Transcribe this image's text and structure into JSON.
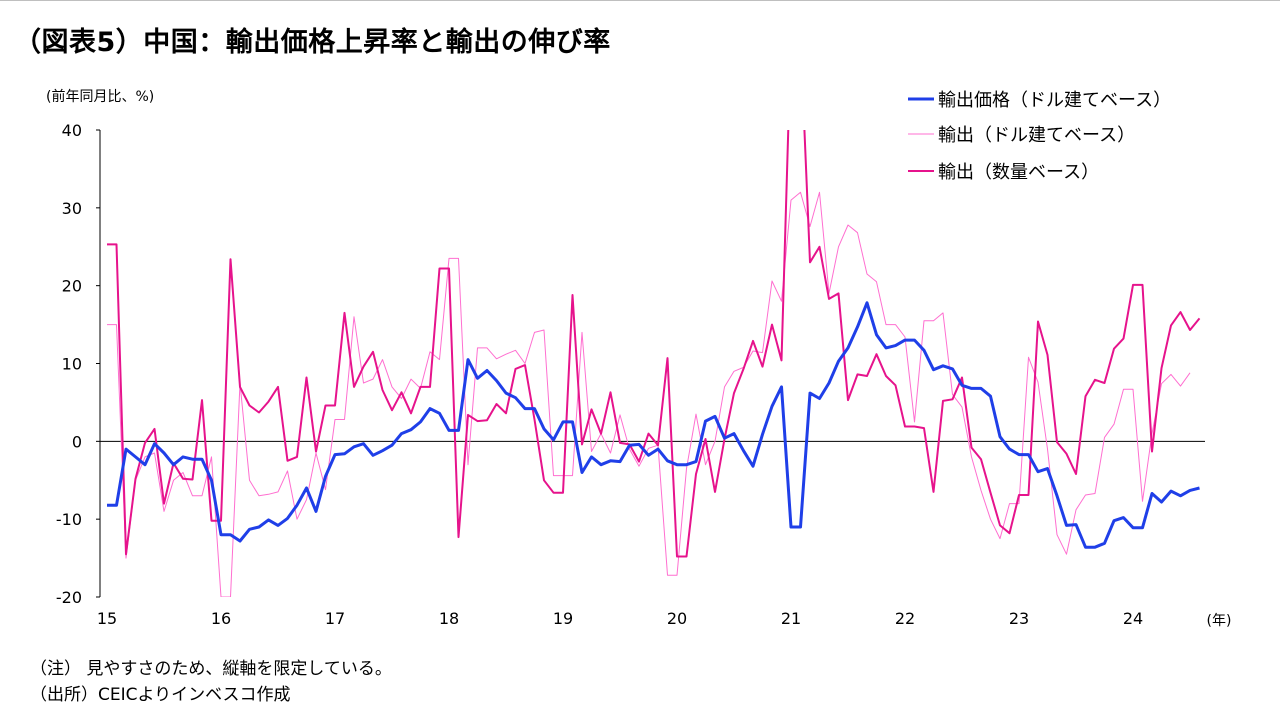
{
  "title": "（図表5）中国：輸出価格上昇率と輸出の伸び率",
  "notes": {
    "note1": "（注） 見やすさのため、縦軸を限定している。",
    "note2": "（出所）CEICよりインベスコ作成"
  },
  "chart_data": {
    "type": "line",
    "ylabel": "(前年同月比、%)",
    "xunit": "(年)",
    "ylim": [
      -20,
      40
    ],
    "yticks": [
      -20,
      -10,
      0,
      10,
      20,
      30,
      40
    ],
    "x_tick_labels": [
      "15",
      "16",
      "17",
      "18",
      "19",
      "20",
      "21",
      "22",
      "23",
      "24"
    ],
    "x_start": "2015-01",
    "legend_position": "top-right",
    "series": [
      {
        "name": "輸出価格（ドル建てベース）",
        "color": "#1f3fe8",
        "width": 3,
        "values": [
          -8.2,
          -8.2,
          -1,
          -2,
          -3,
          -0.3,
          -1.5,
          -3,
          -2,
          -2.3,
          -2.3,
          -5,
          -12,
          -12,
          -12.8,
          -11.3,
          -11,
          -10.1,
          -10.8,
          -9.9,
          -8.2,
          -6,
          -9,
          -4.5,
          -1.7,
          -1.6,
          -0.7,
          -0.3,
          -1.8,
          -1.2,
          -0.5,
          1,
          1.5,
          2.5,
          4.2,
          3.6,
          1.4,
          1.4,
          10.5,
          8.1,
          9.1,
          7.8,
          6.2,
          5.6,
          4.2,
          4.2,
          1.6,
          0.2,
          2.5,
          2.5,
          -4,
          -2,
          -3,
          -2.5,
          -2.6,
          -0.5,
          -0.4,
          -1.8,
          -1,
          -2.5,
          -3,
          -3,
          -2.6,
          2.6,
          3.2,
          0.4,
          1,
          -1.2,
          -3.2,
          0.9,
          4.5,
          7,
          -11,
          -11,
          6.2,
          5.5,
          7.5,
          10.3,
          12,
          14.7,
          17.8,
          13.7,
          12,
          12.3,
          13,
          13,
          11.7,
          9.2,
          9.7,
          9.3,
          7.2,
          6.8,
          6.8,
          5.8,
          0.6,
          -1,
          -1.7,
          -1.7,
          -3.9,
          -3.5,
          -7,
          -10.8,
          -10.7,
          -13.6,
          -13.6,
          -13.1,
          -10.2,
          -9.8,
          -11.1,
          -11.1,
          -6.7,
          -7.8,
          -6.4,
          -7,
          -6.3,
          -6
        ]
      },
      {
        "name": "輸出（ドル建てベース）",
        "color": "#ff6fd0",
        "width": 1,
        "values": [
          15,
          15,
          -15,
          -5,
          -2,
          -1.5,
          -9,
          -5,
          -4,
          -7,
          -7,
          -2,
          -20,
          -20,
          7.5,
          -5,
          -7,
          -6.8,
          -6.5,
          -3.8,
          -10,
          -7.5,
          -1.5,
          -6.2,
          2.8,
          2.8,
          16,
          7.5,
          8,
          10.5,
          7,
          5.5,
          8,
          6.8,
          11.5,
          10.5,
          23.5,
          23.5,
          -3,
          12,
          12,
          10.6,
          11.2,
          11.7,
          10,
          14,
          14.3,
          -4.4,
          -4.4,
          -4.4,
          14,
          -1.3,
          1,
          -1.5,
          3.4,
          -1,
          -3.2,
          -0.9,
          -0.5,
          -17.2,
          -17.2,
          -3.5,
          3.5,
          -3,
          0,
          7,
          9,
          9.5,
          11.6,
          11.4,
          20.6,
          18,
          31,
          32,
          27.6,
          32,
          19,
          25,
          27.8,
          26.8,
          21.5,
          20.5,
          15,
          15,
          13.4,
          2.5,
          15.5,
          15.5,
          16.5,
          6,
          4.4,
          -2,
          -6.3,
          -10,
          -12.5,
          -8,
          -8,
          10.8,
          7.6,
          -1,
          -12,
          -14.5,
          -8.8,
          -6.9,
          -6.7,
          0.5,
          2.2,
          6.7,
          6.7,
          -7.7,
          1,
          7.4,
          8.6,
          7.1,
          8.8
        ]
      },
      {
        "name": "輸出（数量ベース）",
        "color": "#e6138c",
        "width": 2,
        "values": [
          25.3,
          25.3,
          -14.5,
          -4.8,
          -0.2,
          1.6,
          -8,
          -2.8,
          -4.8,
          -4.9,
          5.3,
          -10.2,
          -10.2,
          23.4,
          7,
          4.6,
          3.7,
          5.1,
          7,
          -2.5,
          -2,
          8.2,
          -1.3,
          4.6,
          4.6,
          16.5,
          7,
          9.6,
          11.5,
          6.6,
          4,
          6.3,
          3.6,
          7,
          7,
          22.2,
          22.2,
          -12.3,
          3.4,
          2.6,
          2.7,
          4.8,
          3.6,
          9.3,
          9.8,
          2.8,
          -5,
          -6.6,
          -6.6,
          18.8,
          -0.4,
          4.1,
          1,
          6.3,
          -0.2,
          -0.4,
          -2.6,
          1,
          -0.5,
          10.7,
          -14.8,
          -14.8,
          -4.2,
          0.3,
          -6.5,
          0.3,
          6.2,
          9.3,
          12.9,
          9.6,
          15,
          10.4,
          52,
          52,
          23,
          25,
          18.3,
          19,
          5.3,
          8.6,
          8.4,
          11.2,
          8.4,
          7.2,
          1.9,
          1.9,
          1.7,
          -6.5,
          5.2,
          5.4,
          8.2,
          -0.8,
          -2.3,
          -6.6,
          -10.8,
          -11.8,
          -6.9,
          -6.9,
          15.4,
          11.1,
          -0.1,
          -1.6,
          -4.2,
          5.8,
          7.9,
          7.5,
          11.9,
          13.2,
          20.1,
          20.1,
          -1.3,
          9.4,
          14.9,
          16.6,
          14.3,
          15.8
        ]
      }
    ]
  }
}
